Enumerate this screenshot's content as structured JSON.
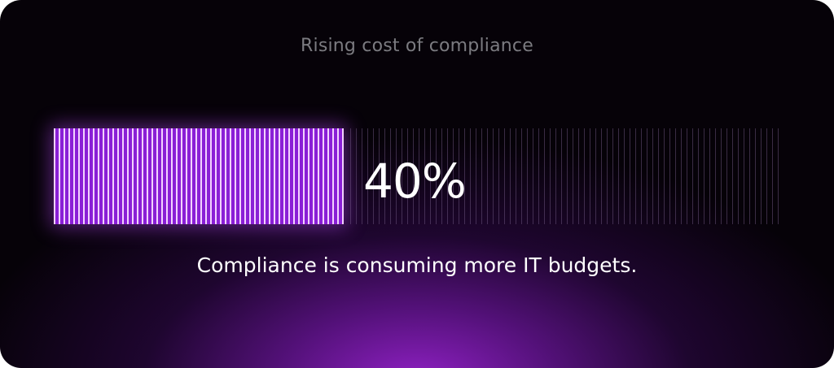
{
  "card": {
    "title": "Rising cost of compliance",
    "stat": {
      "value_label": "40%",
      "fraction": 0.4
    },
    "caption": "Compliance is consuming more IT budgets."
  },
  "colors": {
    "background": "#060208",
    "glow": "#9622cd",
    "bar_fill": "#8a1fd6",
    "bar_stripe": "#f3d2ff",
    "title_text": "#7b7b80",
    "text": "#ffffff"
  }
}
